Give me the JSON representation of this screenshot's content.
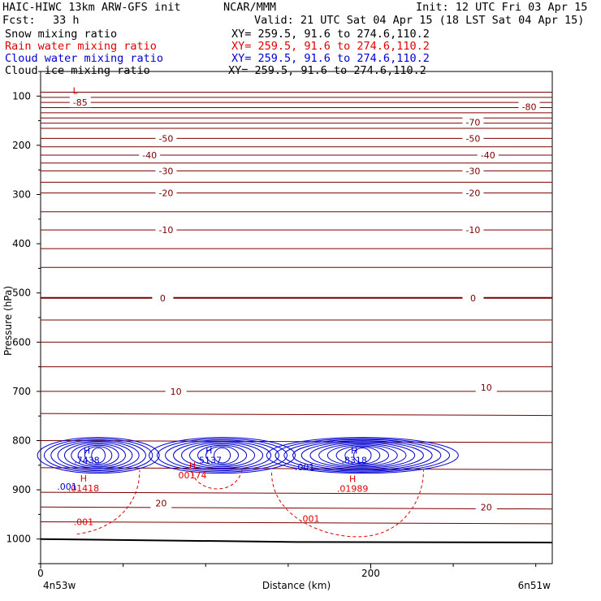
{
  "header": {
    "model": "HAIC-HIWC 13km ARW-GFS init",
    "center": "NCAR/MMM",
    "init": "Init: 12 UTC Fri 03 Apr 15",
    "fcst_label": "Fcst:",
    "fcst_value": "33 h",
    "valid": "Valid: 21 UTC Sat 04 Apr 15 (18 LST Sat 04 Apr 15)",
    "fields": [
      {
        "name": "Snow mixing ratio",
        "xy": "XY= 259.5, 91.6 to 274.6,110.2",
        "color": "#000000"
      },
      {
        "name": "Rain water mixing ratio",
        "xy": "XY= 259.5, 91.6 to 274.6,110.2",
        "color": "#e00000"
      },
      {
        "name": "Cloud water mixing ratio",
        "xy": "XY= 259.5, 91.6 to 274.6,110.2",
        "color": "#0000d0"
      },
      {
        "name": "Cloud ice mixing ratio",
        "xy": "XY= 259.5, 91.6 to 274.6,110.2",
        "color": "#000000"
      }
    ]
  },
  "chart_data": {
    "type": "cross-section contour",
    "ylabel": "Pressure (hPa)",
    "xlabel": "Distance (km)",
    "x_range_km": [
      0,
      310
    ],
    "p_range_hPa": [
      50,
      1050
    ],
    "y_ticks": [
      100,
      200,
      300,
      400,
      500,
      600,
      700,
      800,
      900,
      1000
    ],
    "x_ticks": [
      0,
      200
    ],
    "x_end_labels": {
      "left": "4n53w",
      "right": "6n51w"
    },
    "colors": {
      "temperature": "#7a0000",
      "rain": "#e00000",
      "cloud_water": "#0000d0",
      "ground": "#000000"
    },
    "isotherm_labels": [
      {
        "text": "-85",
        "km": 24,
        "p": 113
      },
      {
        "text": "-80",
        "km": 296,
        "p": 122
      },
      {
        "text": "-70",
        "km": 262,
        "p": 153
      },
      {
        "text": "-50",
        "km": 76,
        "p": 186
      },
      {
        "text": "-50",
        "km": 262,
        "p": 186
      },
      {
        "text": "-40",
        "km": 66,
        "p": 220
      },
      {
        "text": "-40",
        "km": 271,
        "p": 220
      },
      {
        "text": "-30",
        "km": 76,
        "p": 252
      },
      {
        "text": "-30",
        "km": 262,
        "p": 252
      },
      {
        "text": "-20",
        "km": 76,
        "p": 297
      },
      {
        "text": "-20",
        "km": 262,
        "p": 297
      },
      {
        "text": "-10",
        "km": 76,
        "p": 372
      },
      {
        "text": "-10",
        "km": 262,
        "p": 372
      },
      {
        "text": "0",
        "km": 74,
        "p": 510
      },
      {
        "text": "0",
        "km": 262,
        "p": 510
      },
      {
        "text": "10",
        "km": 82,
        "p": 700
      },
      {
        "text": "10",
        "km": 270,
        "p": 692
      },
      {
        "text": "20",
        "km": 73,
        "p": 927
      },
      {
        "text": "20",
        "km": 270,
        "p": 935
      }
    ],
    "extrema": [
      {
        "mark": "L",
        "value": "",
        "km": 21,
        "p": 95,
        "color": "#e00000"
      },
      {
        "mark": "H",
        "value": ".7438",
        "km": 28,
        "p": 826,
        "color": "#0000d0"
      },
      {
        "mark": "H",
        "value": ".01418",
        "km": 26,
        "p": 883,
        "color": "#e00000"
      },
      {
        "mark": "H",
        "value": ".5137",
        "km": 102,
        "p": 826,
        "color": "#0000d0"
      },
      {
        "mark": "H",
        "value": "00174",
        "km": 92,
        "p": 857,
        "color": "#e00000"
      },
      {
        "mark": "H",
        "value": ".8318",
        "km": 190,
        "p": 826,
        "color": "#0000d0"
      },
      {
        "mark": "H",
        "value": ".01989",
        "km": 189,
        "p": 884,
        "color": "#e00000"
      }
    ],
    "contour_labels": [
      {
        "text": ".001",
        "km": 16,
        "p": 900,
        "color": "#0000d0"
      },
      {
        "text": ".001",
        "km": 160,
        "p": 860,
        "color": "#0000d0"
      },
      {
        "text": ".001",
        "km": 26,
        "p": 972,
        "color": "#e00000"
      },
      {
        "text": ".001",
        "km": 163,
        "p": 965,
        "color": "#e00000"
      }
    ]
  }
}
